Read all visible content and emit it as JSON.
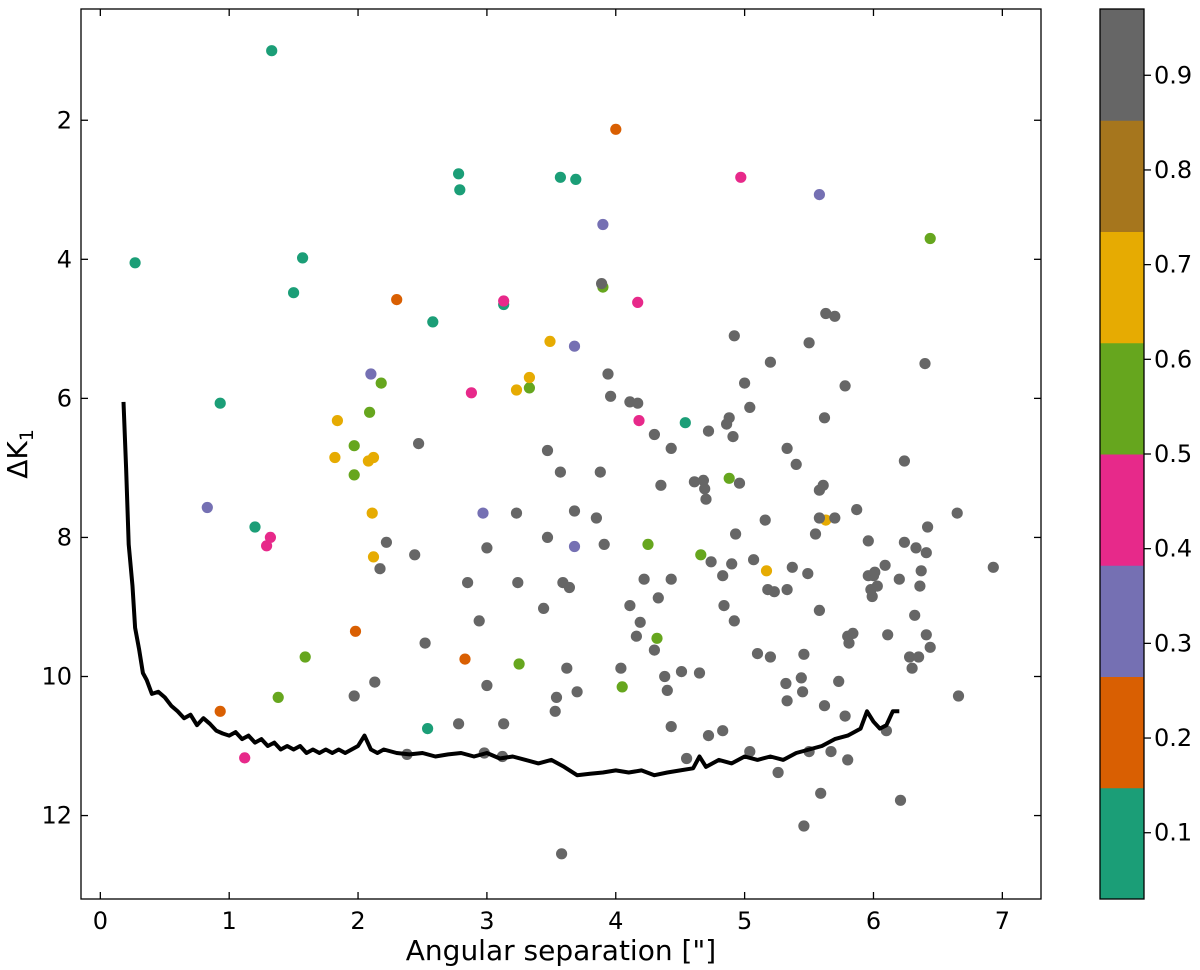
{
  "chart_data": {
    "type": "scatter",
    "xlabel": "Angular separation [\"]",
    "ylabel": "ΔK",
    "ylabel_sub": "1",
    "xlim": [
      -0.15,
      7.3
    ],
    "ylim": [
      13.2,
      0.4
    ],
    "y_inverted": true,
    "x_ticks": [
      0,
      1,
      2,
      3,
      4,
      5,
      6,
      7
    ],
    "y_ticks": [
      2,
      4,
      6,
      8,
      10,
      12
    ],
    "grid": false,
    "colorbar": {
      "range": [
        0.03,
        0.97
      ],
      "ticks": [
        "0.1",
        "0.2",
        "0.3",
        "0.4",
        "0.5",
        "0.6",
        "0.7",
        "0.8",
        "0.9"
      ],
      "colors": [
        "#1b9e77",
        "#d95f02",
        "#7570b3",
        "#e7298a",
        "#66a61e",
        "#e6ab02",
        "#a6761d",
        "#666666"
      ]
    },
    "contrast_curve": {
      "color": "#000000",
      "x": [
        0.18,
        0.2,
        0.22,
        0.25,
        0.27,
        0.3,
        0.33,
        0.36,
        0.4,
        0.45,
        0.5,
        0.55,
        0.6,
        0.65,
        0.7,
        0.75,
        0.8,
        0.85,
        0.9,
        0.95,
        1.0,
        1.05,
        1.1,
        1.15,
        1.2,
        1.25,
        1.3,
        1.35,
        1.4,
        1.45,
        1.5,
        1.55,
        1.6,
        1.65,
        1.7,
        1.75,
        1.8,
        1.85,
        1.9,
        1.95,
        2.0,
        2.05,
        2.1,
        2.15,
        2.2,
        2.3,
        2.4,
        2.5,
        2.6,
        2.7,
        2.8,
        2.9,
        3.0,
        3.1,
        3.2,
        3.3,
        3.4,
        3.5,
        3.6,
        3.7,
        3.8,
        3.9,
        4.0,
        4.1,
        4.2,
        4.3,
        4.4,
        4.5,
        4.6,
        4.65,
        4.7,
        4.8,
        4.9,
        5.0,
        5.1,
        5.2,
        5.3,
        5.4,
        5.5,
        5.6,
        5.7,
        5.8,
        5.85,
        5.9,
        5.95,
        6.0,
        6.05,
        6.1,
        6.15,
        6.2
      ],
      "y": [
        6.05,
        7.0,
        8.1,
        8.7,
        9.3,
        9.6,
        9.95,
        10.05,
        10.25,
        10.22,
        10.3,
        10.42,
        10.5,
        10.6,
        10.55,
        10.7,
        10.6,
        10.68,
        10.78,
        10.82,
        10.85,
        10.8,
        10.9,
        10.85,
        10.95,
        10.9,
        11.0,
        10.95,
        11.05,
        11.0,
        11.05,
        11.0,
        11.1,
        11.05,
        11.1,
        11.05,
        11.1,
        11.05,
        11.1,
        11.05,
        11.0,
        10.85,
        11.05,
        11.1,
        11.05,
        11.1,
        11.12,
        11.1,
        11.15,
        11.12,
        11.1,
        11.15,
        11.1,
        11.18,
        11.15,
        11.2,
        11.25,
        11.2,
        11.3,
        11.42,
        11.4,
        11.38,
        11.35,
        11.38,
        11.35,
        11.42,
        11.38,
        11.35,
        11.32,
        11.15,
        11.3,
        11.2,
        11.25,
        11.15,
        11.2,
        11.15,
        11.2,
        11.1,
        11.05,
        11.0,
        10.9,
        10.85,
        10.8,
        10.75,
        10.5,
        10.65,
        10.75,
        10.7,
        10.5,
        10.5
      ]
    },
    "points": [
      [
        1.33,
        1.0,
        0.1
      ],
      [
        0.27,
        4.05,
        0.1
      ],
      [
        1.57,
        3.98,
        0.1
      ],
      [
        1.5,
        4.48,
        0.1
      ],
      [
        0.93,
        6.07,
        0.1
      ],
      [
        1.2,
        7.85,
        0.1
      ],
      [
        2.78,
        2.77,
        0.1
      ],
      [
        2.79,
        3.0,
        0.1
      ],
      [
        3.57,
        2.82,
        0.1
      ],
      [
        3.69,
        2.85,
        0.1
      ],
      [
        2.58,
        4.9,
        0.1
      ],
      [
        3.13,
        4.65,
        0.1
      ],
      [
        4.54,
        6.35,
        0.1
      ],
      [
        2.54,
        10.75,
        0.1
      ],
      [
        4.0,
        2.13,
        0.2
      ],
      [
        2.3,
        4.58,
        0.2
      ],
      [
        1.98,
        9.35,
        0.2
      ],
      [
        2.83,
        9.75,
        0.2
      ],
      [
        0.93,
        10.5,
        0.2
      ],
      [
        5.58,
        3.07,
        0.3
      ],
      [
        3.9,
        3.5,
        0.3
      ],
      [
        3.68,
        5.25,
        0.3
      ],
      [
        2.1,
        5.65,
        0.3
      ],
      [
        0.83,
        7.57,
        0.3
      ],
      [
        2.97,
        7.65,
        0.3
      ],
      [
        3.68,
        8.13,
        0.3
      ],
      [
        4.97,
        2.82,
        0.4
      ],
      [
        3.13,
        4.6,
        0.4
      ],
      [
        4.17,
        4.62,
        0.4
      ],
      [
        2.88,
        5.92,
        0.4
      ],
      [
        4.18,
        6.32,
        0.4
      ],
      [
        1.32,
        8.0,
        0.4
      ],
      [
        1.29,
        8.12,
        0.4
      ],
      [
        1.12,
        11.17,
        0.4
      ],
      [
        3.9,
        4.4,
        0.5
      ],
      [
        2.18,
        5.78,
        0.5
      ],
      [
        1.97,
        6.68,
        0.5
      ],
      [
        1.97,
        7.1,
        0.5
      ],
      [
        4.66,
        8.25,
        0.5
      ],
      [
        4.32,
        9.45,
        0.5
      ],
      [
        3.25,
        9.82,
        0.5
      ],
      [
        6.44,
        3.7,
        0.6
      ],
      [
        2.09,
        6.2,
        0.6
      ],
      [
        3.33,
        5.85,
        0.6
      ],
      [
        4.88,
        7.15,
        0.6
      ],
      [
        4.25,
        8.1,
        0.6
      ],
      [
        1.59,
        9.72,
        0.6
      ],
      [
        1.38,
        10.3,
        0.6
      ],
      [
        4.05,
        10.15,
        0.6
      ],
      [
        3.49,
        5.18,
        0.7
      ],
      [
        3.33,
        5.7,
        0.7
      ],
      [
        3.23,
        5.88,
        0.7
      ],
      [
        1.84,
        6.32,
        0.7
      ],
      [
        1.82,
        6.85,
        0.7
      ],
      [
        2.08,
        6.9,
        0.7
      ],
      [
        2.12,
        6.85,
        0.7
      ],
      [
        2.11,
        7.65,
        0.7
      ],
      [
        2.12,
        8.28,
        0.7
      ],
      [
        5.17,
        8.48,
        0.7
      ],
      [
        5.63,
        7.75,
        0.7
      ],
      [
        3.89,
        4.35,
        0.9
      ],
      [
        3.94,
        5.65,
        0.9
      ],
      [
        3.96,
        5.97,
        0.9
      ],
      [
        4.11,
        6.05,
        0.9
      ],
      [
        4.17,
        6.07,
        0.9
      ],
      [
        4.3,
        6.52,
        0.9
      ],
      [
        4.43,
        6.72,
        0.9
      ],
      [
        3.47,
        6.75,
        0.9
      ],
      [
        3.57,
        7.06,
        0.9
      ],
      [
        3.88,
        7.06,
        0.9
      ],
      [
        4.35,
        7.25,
        0.9
      ],
      [
        2.47,
        6.65,
        0.9
      ],
      [
        3.68,
        7.62,
        0.9
      ],
      [
        3.23,
        7.65,
        0.9
      ],
      [
        3.85,
        7.72,
        0.9
      ],
      [
        3.47,
        8.0,
        0.9
      ],
      [
        3.0,
        8.15,
        0.9
      ],
      [
        3.91,
        8.1,
        0.9
      ],
      [
        2.22,
        8.07,
        0.9
      ],
      [
        2.44,
        8.25,
        0.9
      ],
      [
        2.17,
        8.45,
        0.9
      ],
      [
        2.85,
        8.65,
        0.9
      ],
      [
        3.24,
        8.65,
        0.9
      ],
      [
        3.59,
        8.65,
        0.9
      ],
      [
        3.64,
        8.72,
        0.9
      ],
      [
        3.44,
        9.02,
        0.9
      ],
      [
        2.94,
        9.2,
        0.9
      ],
      [
        2.52,
        9.52,
        0.9
      ],
      [
        4.11,
        8.98,
        0.9
      ],
      [
        4.16,
        9.42,
        0.9
      ],
      [
        4.19,
        9.22,
        0.9
      ],
      [
        4.3,
        9.62,
        0.9
      ],
      [
        4.33,
        8.87,
        0.9
      ],
      [
        4.43,
        8.6,
        0.9
      ],
      [
        4.22,
        8.6,
        0.9
      ],
      [
        4.61,
        7.2,
        0.9
      ],
      [
        4.68,
        7.18,
        0.9
      ],
      [
        4.72,
        6.47,
        0.9
      ],
      [
        4.69,
        7.3,
        0.9
      ],
      [
        4.7,
        7.45,
        0.9
      ],
      [
        4.74,
        8.35,
        0.9
      ],
      [
        4.83,
        8.55,
        0.9
      ],
      [
        4.84,
        8.98,
        0.9
      ],
      [
        4.86,
        6.37,
        0.9
      ],
      [
        4.88,
        6.28,
        0.9
      ],
      [
        4.91,
        6.55,
        0.9
      ],
      [
        4.92,
        5.1,
        0.9
      ],
      [
        4.93,
        7.95,
        0.9
      ],
      [
        4.9,
        8.38,
        0.9
      ],
      [
        4.92,
        9.2,
        0.9
      ],
      [
        4.96,
        7.22,
        0.9
      ],
      [
        5.0,
        5.78,
        0.9
      ],
      [
        5.04,
        6.13,
        0.9
      ],
      [
        5.07,
        8.32,
        0.9
      ],
      [
        5.1,
        9.67,
        0.9
      ],
      [
        5.16,
        7.75,
        0.9
      ],
      [
        5.18,
        8.75,
        0.9
      ],
      [
        5.2,
        9.72,
        0.9
      ],
      [
        5.23,
        8.78,
        0.9
      ],
      [
        5.2,
        5.48,
        0.9
      ],
      [
        5.33,
        6.72,
        0.9
      ],
      [
        5.33,
        8.75,
        0.9
      ],
      [
        5.37,
        8.43,
        0.9
      ],
      [
        5.4,
        6.95,
        0.9
      ],
      [
        5.46,
        9.68,
        0.9
      ],
      [
        5.49,
        8.52,
        0.9
      ],
      [
        5.5,
        5.2,
        0.9
      ],
      [
        5.55,
        7.95,
        0.9
      ],
      [
        5.58,
        7.32,
        0.9
      ],
      [
        5.58,
        7.72,
        0.9
      ],
      [
        5.58,
        9.05,
        0.9
      ],
      [
        5.61,
        7.25,
        0.9
      ],
      [
        5.62,
        6.28,
        0.9
      ],
      [
        5.62,
        10.42,
        0.9
      ],
      [
        5.63,
        4.78,
        0.9
      ],
      [
        5.7,
        4.82,
        0.9
      ],
      [
        5.7,
        7.72,
        0.9
      ],
      [
        5.73,
        10.07,
        0.9
      ],
      [
        5.67,
        11.08,
        0.9
      ],
      [
        5.8,
        9.42,
        0.9
      ],
      [
        5.81,
        9.52,
        0.9
      ],
      [
        5.84,
        9.38,
        0.9
      ],
      [
        5.87,
        7.6,
        0.9
      ],
      [
        5.78,
        5.82,
        0.9
      ],
      [
        5.78,
        10.57,
        0.9
      ],
      [
        5.8,
        11.2,
        0.9
      ],
      [
        5.96,
        8.05,
        0.9
      ],
      [
        5.96,
        8.55,
        0.9
      ],
      [
        5.98,
        8.75,
        0.9
      ],
      [
        5.99,
        8.85,
        0.9
      ],
      [
        6.0,
        8.55,
        0.9
      ],
      [
        6.01,
        8.5,
        0.9
      ],
      [
        6.03,
        8.7,
        0.9
      ],
      [
        6.09,
        8.4,
        0.9
      ],
      [
        6.11,
        9.4,
        0.9
      ],
      [
        6.1,
        10.78,
        0.9
      ],
      [
        6.2,
        8.6,
        0.9
      ],
      [
        6.24,
        8.07,
        0.9
      ],
      [
        6.24,
        6.9,
        0.9
      ],
      [
        6.28,
        9.72,
        0.9
      ],
      [
        6.3,
        9.88,
        0.9
      ],
      [
        6.32,
        9.12,
        0.9
      ],
      [
        6.33,
        8.15,
        0.9
      ],
      [
        6.35,
        9.72,
        0.9
      ],
      [
        6.36,
        8.7,
        0.9
      ],
      [
        6.37,
        8.48,
        0.9
      ],
      [
        6.4,
        5.5,
        0.9
      ],
      [
        6.41,
        8.22,
        0.9
      ],
      [
        6.41,
        9.4,
        0.9
      ],
      [
        6.42,
        7.85,
        0.9
      ],
      [
        6.44,
        9.58,
        0.9
      ],
      [
        6.21,
        11.78,
        0.9
      ],
      [
        6.65,
        7.65,
        0.9
      ],
      [
        6.66,
        10.28,
        0.9
      ],
      [
        6.93,
        8.43,
        0.9
      ],
      [
        1.97,
        10.28,
        0.9
      ],
      [
        2.13,
        10.08,
        0.9
      ],
      [
        2.38,
        11.12,
        0.9
      ],
      [
        2.78,
        10.68,
        0.9
      ],
      [
        2.98,
        11.1,
        0.9
      ],
      [
        3.0,
        10.13,
        0.9
      ],
      [
        3.12,
        11.15,
        0.9
      ],
      [
        3.13,
        10.68,
        0.9
      ],
      [
        3.53,
        10.5,
        0.9
      ],
      [
        3.54,
        10.3,
        0.9
      ],
      [
        3.62,
        9.88,
        0.9
      ],
      [
        3.7,
        10.22,
        0.9
      ],
      [
        4.04,
        9.88,
        0.9
      ],
      [
        4.38,
        10.0,
        0.9
      ],
      [
        4.4,
        10.2,
        0.9
      ],
      [
        4.43,
        10.72,
        0.9
      ],
      [
        4.51,
        9.93,
        0.9
      ],
      [
        4.55,
        11.18,
        0.9
      ],
      [
        4.65,
        9.95,
        0.9
      ],
      [
        4.72,
        10.85,
        0.9
      ],
      [
        4.83,
        10.78,
        0.9
      ],
      [
        5.04,
        11.08,
        0.9
      ],
      [
        5.26,
        11.38,
        0.9
      ],
      [
        5.32,
        10.1,
        0.9
      ],
      [
        5.33,
        10.35,
        0.9
      ],
      [
        5.44,
        10.02,
        0.9
      ],
      [
        5.45,
        10.22,
        0.9
      ],
      [
        5.5,
        11.08,
        0.9
      ],
      [
        5.59,
        11.68,
        0.9
      ],
      [
        5.46,
        12.15,
        0.9
      ],
      [
        3.58,
        12.55,
        0.9
      ]
    ]
  }
}
